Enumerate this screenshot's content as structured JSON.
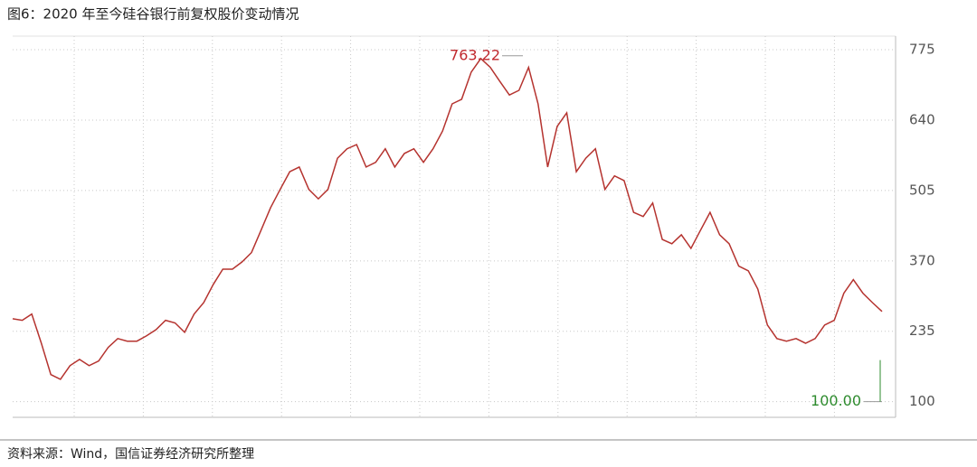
{
  "chart_data": {
    "type": "line",
    "title": "图6：2020 年至今硅谷银行前复权股价变动情况",
    "source": "资料来源：Wind，国信证券经济研究所整理",
    "values": [
      259,
      256,
      268,
      212,
      152,
      143,
      169,
      181,
      169,
      178,
      204,
      221,
      216,
      216,
      226,
      238,
      256,
      251,
      233,
      268,
      290,
      325,
      354,
      354,
      368,
      386,
      429,
      472,
      507,
      541,
      550,
      507,
      489,
      507,
      567,
      585,
      593,
      550,
      559,
      585,
      550,
      576,
      585,
      559,
      585,
      619,
      671,
      680,
      732,
      758,
      741,
      714,
      688,
      697,
      741,
      671,
      550,
      628,
      654,
      541,
      567,
      585,
      507,
      533,
      524,
      463,
      455,
      481,
      411,
      403,
      420,
      394,
      429,
      463,
      420,
      403,
      360,
      351,
      316,
      247,
      221,
      216,
      221,
      212,
      221,
      247,
      256,
      308,
      334,
      308,
      290,
      273
    ],
    "color": "#b5332f",
    "ylim": [
      70,
      801
    ],
    "yticks": [
      775,
      640,
      505,
      370,
      235,
      100
    ],
    "grid": true,
    "annotations": [
      {
        "value": 763.22,
        "label": "763.22",
        "color": "#c0282d"
      },
      {
        "value": 100,
        "label": "100.00",
        "color": "#2e8b2e"
      }
    ]
  }
}
